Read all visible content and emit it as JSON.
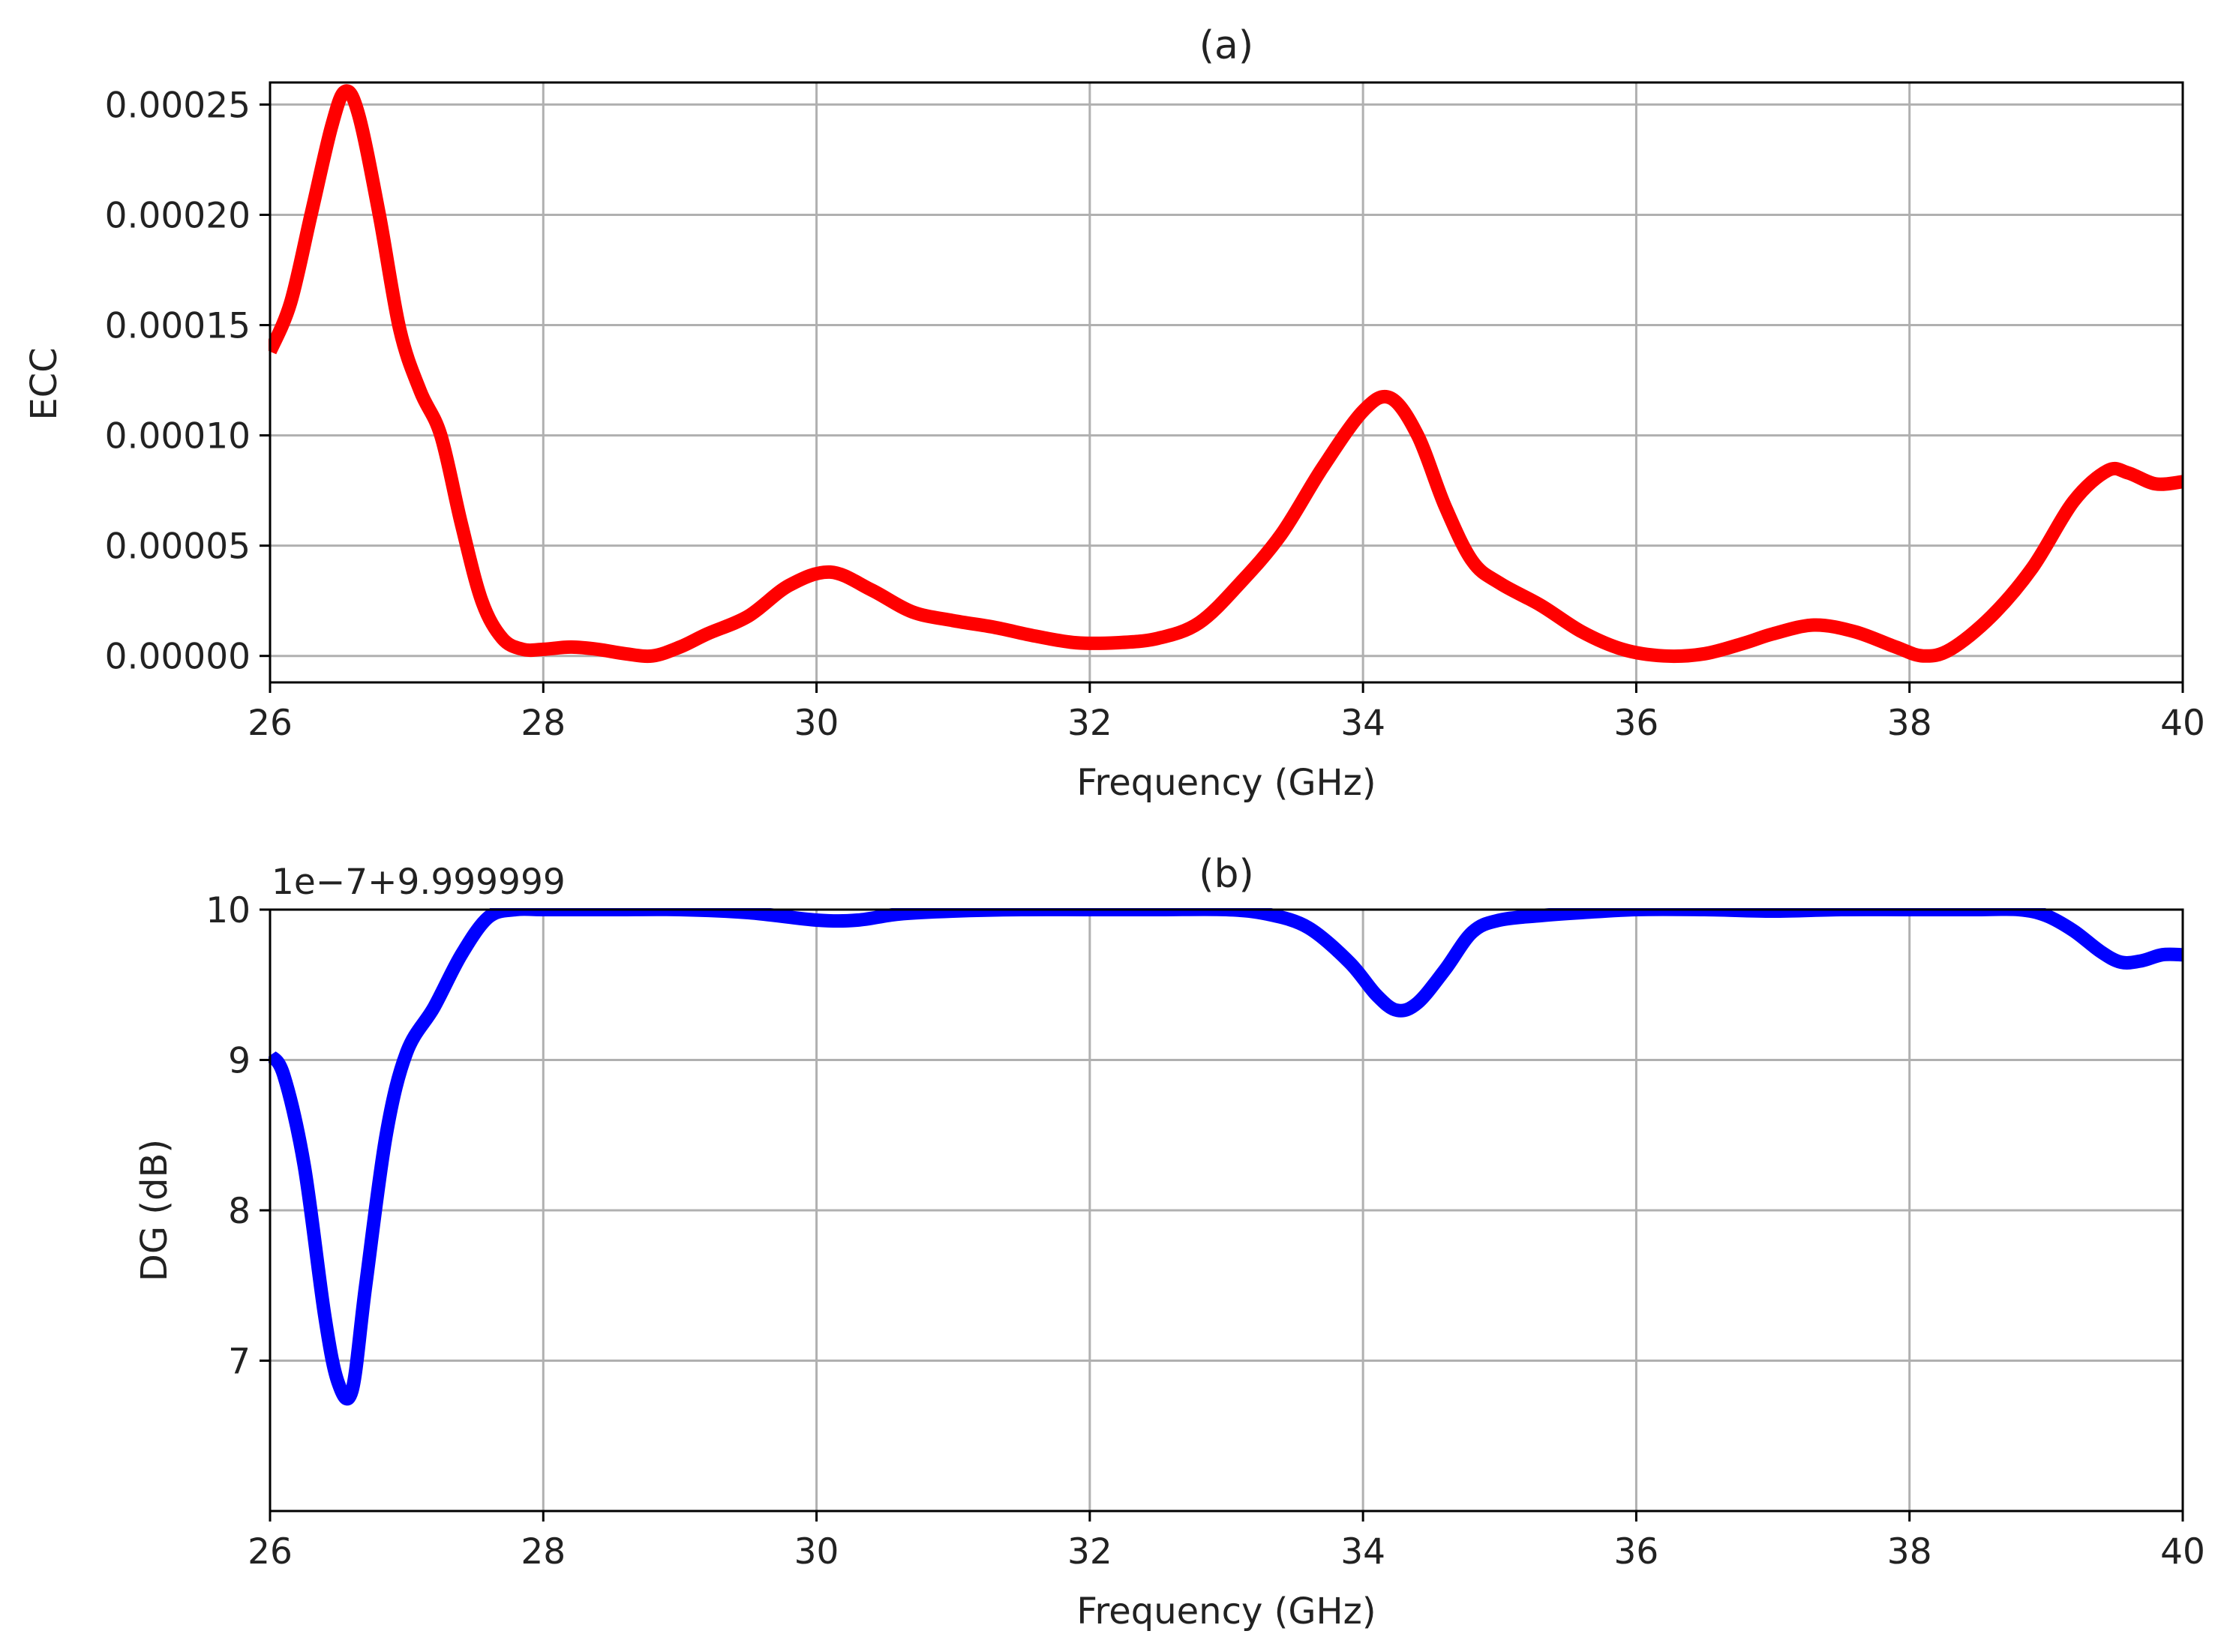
{
  "chart_data": [
    {
      "type": "line",
      "title": "(a)",
      "xlabel": "Frequency (GHz)",
      "ylabel": "ECC",
      "xlim": [
        26,
        40
      ],
      "ylim": [
        -1.2e-05,
        0.00026
      ],
      "grid": true,
      "xticks": [
        26,
        28,
        30,
        32,
        34,
        36,
        38,
        40
      ],
      "xtick_labels": [
        "26",
        "28",
        "30",
        "32",
        "34",
        "36",
        "38",
        "40"
      ],
      "yticks": [
        0,
        5e-05,
        0.0001,
        0.00015,
        0.0002,
        0.00025
      ],
      "ytick_labels": [
        "0.00000",
        "0.00005",
        "0.00010",
        "0.00015",
        "0.00020",
        "0.00025"
      ],
      "series": [
        {
          "name": "ECC",
          "color": "#ff0000",
          "x": [
            26.0,
            26.15,
            26.3,
            26.45,
            26.55,
            26.65,
            26.8,
            26.95,
            27.1,
            27.25,
            27.4,
            27.55,
            27.7,
            27.85,
            28.0,
            28.2,
            28.4,
            28.6,
            28.8,
            29.0,
            29.2,
            29.5,
            29.8,
            30.1,
            30.4,
            30.7,
            31.0,
            31.3,
            31.6,
            31.9,
            32.2,
            32.5,
            32.8,
            33.1,
            33.4,
            33.7,
            34.0,
            34.2,
            34.4,
            34.6,
            34.8,
            35.0,
            35.3,
            35.6,
            35.9,
            36.2,
            36.5,
            36.8,
            37.0,
            37.3,
            37.6,
            37.9,
            38.1,
            38.3,
            38.6,
            38.9,
            39.2,
            39.45,
            39.6,
            39.8,
            40.0
          ],
          "y": [
            0.000138,
            0.00016,
            0.0002,
            0.00024,
            0.000256,
            0.000245,
            0.0002,
            0.000148,
            0.00012,
            0.0001,
            6e-05,
            2.5e-05,
            8e-06,
            3e-06,
            3e-06,
            4e-06,
            3e-06,
            1e-06,
            0.0,
            4e-06,
            1e-05,
            1.8e-05,
            3.2e-05,
            3.8e-05,
            3e-05,
            2e-05,
            1.6e-05,
            1.3e-05,
            9e-06,
            6e-06,
            6e-06,
            8e-06,
            1.5e-05,
            3.3e-05,
            5.5e-05,
            8.5e-05,
            0.000111,
            0.000117,
            0.0001,
            6.8e-05,
            4.3e-05,
            3.3e-05,
            2.3e-05,
            1.1e-05,
            3e-06,
            0.0,
            1e-06,
            6e-06,
            1e-05,
            1.4e-05,
            1.1e-05,
            4e-06,
            0.0,
            3e-06,
            1.8e-05,
            4e-05,
            7e-05,
            8.4e-05,
            8.3e-05,
            7.8e-05,
            7.9e-05
          ]
        }
      ]
    },
    {
      "type": "line",
      "title": "(b)",
      "xlabel": "Frequency (GHz)",
      "ylabel": "DG (dB)",
      "offset_text": "1e−7+9.999999",
      "xlim": [
        26,
        40
      ],
      "ylim": [
        6.0,
        10.0
      ],
      "grid": true,
      "xticks": [
        26,
        28,
        30,
        32,
        34,
        36,
        38,
        40
      ],
      "xtick_labels": [
        "26",
        "28",
        "30",
        "32",
        "34",
        "36",
        "38",
        "40"
      ],
      "yticks": [
        7,
        8,
        9,
        10
      ],
      "ytick_labels": [
        "7",
        "8",
        "9",
        "10"
      ],
      "series": [
        {
          "name": "DG",
          "color": "#0000ff",
          "x": [
            26.0,
            26.1,
            26.25,
            26.4,
            26.5,
            26.6,
            26.7,
            26.85,
            27.0,
            27.2,
            27.4,
            27.6,
            27.8,
            28.0,
            28.5,
            29.0,
            29.5,
            30.0,
            30.3,
            30.6,
            31.0,
            31.5,
            32.0,
            32.5,
            33.0,
            33.3,
            33.6,
            33.9,
            34.1,
            34.25,
            34.4,
            34.6,
            34.8,
            35.0,
            35.3,
            35.6,
            36.0,
            36.5,
            37.0,
            37.5,
            38.0,
            38.5,
            38.8,
            39.0,
            39.2,
            39.4,
            39.55,
            39.7,
            39.85,
            40.0
          ],
          "y": [
            9.03,
            8.9,
            8.3,
            7.3,
            6.85,
            6.8,
            7.5,
            8.5,
            9.05,
            9.35,
            9.7,
            9.95,
            10.0,
            10.0,
            10.0,
            10.0,
            9.98,
            9.93,
            9.93,
            9.97,
            9.99,
            10.0,
            10.0,
            10.0,
            10.0,
            9.97,
            9.88,
            9.65,
            9.43,
            9.33,
            9.38,
            9.6,
            9.85,
            9.93,
            9.96,
            9.98,
            10.0,
            10.0,
            9.99,
            10.0,
            10.0,
            10.0,
            10.0,
            9.96,
            9.86,
            9.72,
            9.65,
            9.66,
            9.7,
            9.7
          ]
        }
      ]
    }
  ]
}
